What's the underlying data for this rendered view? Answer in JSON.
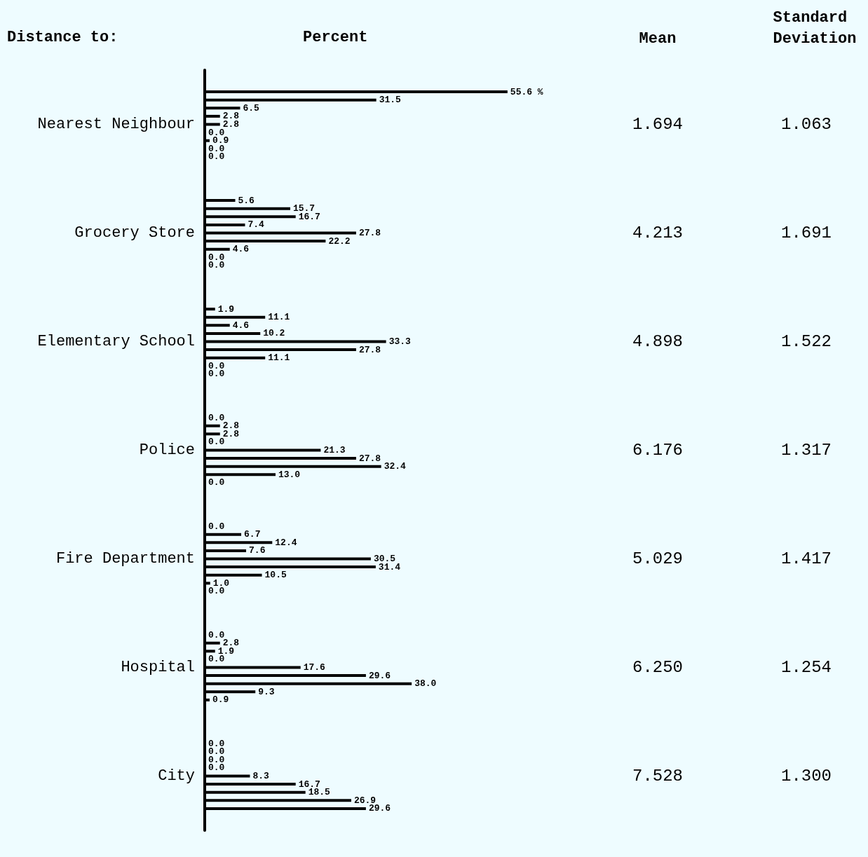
{
  "chart_data": {
    "type": "bar",
    "orientation": "horizontal",
    "xlabel": "Percent",
    "ylabel": "Distance to:",
    "categories": [
      "Nearest Neighbour",
      "Grocery Store",
      "Elementary School",
      "Police",
      "Fire Department",
      "Hospital",
      "City"
    ],
    "tick_labels": "y",
    "series": [
      {
        "color": "#000000",
        "values": [
          55.6,
          5.6,
          1.9,
          0.0,
          0.0,
          0.0,
          0.0
        ],
        "value_labels": [
          "55.6 %",
          "5.6",
          "1.9",
          "0.0",
          "0.0",
          "0.0",
          "0.0"
        ]
      },
      {
        "color": "#000000",
        "values": [
          31.5,
          15.7,
          11.1,
          2.8,
          6.7,
          2.8,
          0.0
        ],
        "value_labels": [
          "31.5",
          "15.7",
          "11.1",
          "2.8",
          "6.7",
          "2.8",
          "0.0"
        ]
      },
      {
        "color": "#000000",
        "values": [
          6.5,
          16.7,
          4.6,
          2.8,
          12.4,
          1.9,
          0.0
        ],
        "value_labels": [
          "6.5",
          "16.7",
          "4.6",
          "2.8",
          "12.4",
          "1.9",
          "0.0"
        ]
      },
      {
        "color": "#000000",
        "values": [
          2.8,
          7.4,
          10.2,
          0.0,
          7.6,
          0.0,
          0.0
        ],
        "value_labels": [
          "2.8",
          "7.4",
          "10.2",
          "0.0",
          "7.6",
          "0.0",
          "0.0"
        ]
      },
      {
        "color": "#000000",
        "values": [
          2.8,
          27.8,
          33.3,
          21.3,
          30.5,
          17.6,
          8.3
        ],
        "value_labels": [
          "2.8",
          "27.8",
          "33.3",
          "21.3",
          "30.5",
          "17.6",
          "8.3"
        ]
      },
      {
        "color": "#000000",
        "values": [
          0.0,
          22.2,
          27.8,
          27.8,
          31.4,
          29.6,
          16.7
        ],
        "value_labels": [
          "0.0",
          "22.2",
          "27.8",
          "27.8",
          "31.4",
          "29.6",
          "16.7"
        ]
      },
      {
        "color": "#000000",
        "values": [
          0.9,
          4.6,
          11.1,
          32.4,
          10.5,
          38.0,
          18.5
        ],
        "value_labels": [
          "0.9",
          "4.6",
          "11.1",
          "32.4",
          "10.5",
          "38.0",
          "18.5"
        ]
      },
      {
        "color": "#000000",
        "values": [
          0.0,
          0.0,
          0.0,
          13.0,
          1.0,
          9.3,
          26.9
        ],
        "value_labels": [
          "0.0",
          "0.0",
          "0.0",
          "13.0",
          "1.0",
          "9.3",
          "26.9"
        ]
      },
      {
        "color": "#000000",
        "values": [
          0.0,
          0.0,
          0.0,
          0.0,
          0.0,
          0.9,
          29.6
        ],
        "value_labels": [
          "0.0",
          "0.0",
          "0.0",
          "0.0",
          "0.0",
          "0.9",
          "29.6"
        ]
      }
    ],
    "annotations": [
      "Mean",
      "Standard Deviation",
      "1.694",
      "1.063",
      "4.213",
      "1.691",
      "4.898",
      "1.522",
      "6.176",
      "1.317",
      "5.029",
      "1.417",
      "6.250",
      "1.254",
      "7.528",
      "1.300"
    ]
  }
}
